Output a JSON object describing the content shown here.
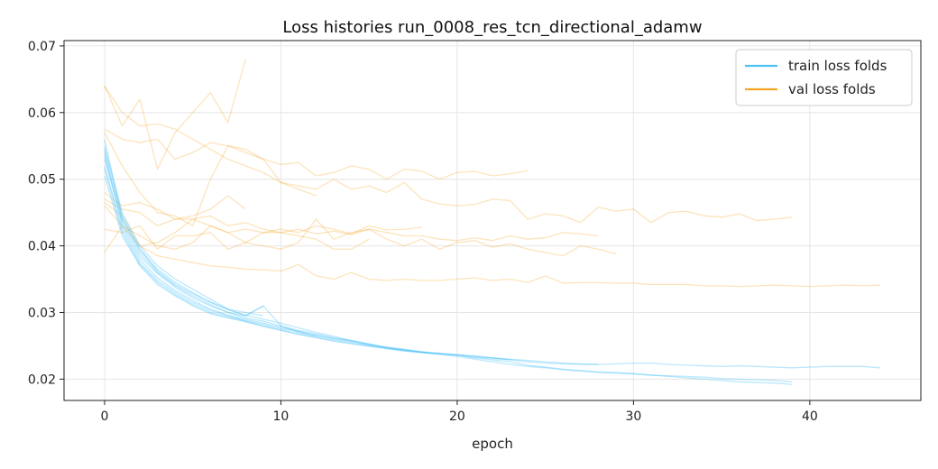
{
  "chart_data": {
    "type": "line",
    "title": "Loss histories run_0008_res_tcn_directional_adamw",
    "xlabel": "epoch",
    "ylabel": "",
    "xlim": [
      -2.3,
      46.3
    ],
    "ylim": [
      0.0168,
      0.0708
    ],
    "x_ticks": [
      0,
      10,
      20,
      30,
      40
    ],
    "y_ticks": [
      0.02,
      0.03,
      0.04,
      0.05,
      0.06,
      0.07
    ],
    "y_tick_labels": [
      "0.02",
      "0.03",
      "0.04",
      "0.05",
      "0.06",
      "0.07"
    ],
    "grid": true,
    "legend": {
      "placement": "top-right",
      "entries": [
        "train loss folds",
        "val loss folds"
      ]
    },
    "colors": {
      "train": "#4fc3f7",
      "val": "#f5a623"
    },
    "series": [
      {
        "group": "train",
        "x_start": 0,
        "values": [
          0.0545,
          0.0445,
          0.0395,
          0.0365,
          0.0345,
          0.033,
          0.0315,
          0.0305,
          0.03,
          0.0295
        ]
      },
      {
        "group": "train",
        "x_start": 0,
        "values": [
          0.0535,
          0.044,
          0.039,
          0.036,
          0.034,
          0.0325,
          0.0312,
          0.03,
          0.0295,
          0.031,
          0.028,
          0.027,
          0.0265
        ]
      },
      {
        "group": "train",
        "x_start": 0,
        "values": [
          0.055,
          0.045,
          0.04,
          0.037,
          0.035,
          0.0335,
          0.032,
          0.0305,
          0.0295,
          0.031
        ]
      },
      {
        "group": "train",
        "x_start": 0,
        "values": [
          0.053,
          0.0435,
          0.0385,
          0.0358,
          0.0338,
          0.0322,
          0.031,
          0.03,
          0.0292,
          0.0287,
          0.028,
          0.0273,
          0.0268,
          0.0262,
          0.0258,
          0.0253,
          0.0248,
          0.0244,
          0.0241,
          0.0238,
          0.0236,
          0.0233,
          0.0231,
          0.0229,
          0.0226,
          0.0224,
          0.0223,
          0.0222,
          0.0222,
          0.0223,
          0.0224,
          0.0224,
          0.0222,
          0.0221,
          0.022,
          0.0219,
          0.022,
          0.0219,
          0.0218,
          0.0217,
          0.0218,
          0.0219,
          0.0219,
          0.0219,
          0.0217
        ]
      },
      {
        "group": "train",
        "x_start": 0,
        "values": [
          0.054,
          0.043,
          0.038,
          0.0352,
          0.0333,
          0.0318,
          0.0305,
          0.0296,
          0.029,
          0.0284,
          0.0278,
          0.0272,
          0.0266,
          0.0261,
          0.0257,
          0.0252,
          0.0248,
          0.0245,
          0.0241,
          0.0238,
          0.0236,
          0.0232,
          0.0229,
          0.0226,
          0.0221,
          0.0218,
          0.0215,
          0.0213,
          0.0211,
          0.021,
          0.0208,
          0.0206,
          0.0204,
          0.0202,
          0.02,
          0.0198,
          0.0196,
          0.0195,
          0.0194,
          0.0192
        ]
      },
      {
        "group": "train",
        "x_start": 0,
        "values": [
          0.052,
          0.0425,
          0.0375,
          0.0348,
          0.033,
          0.0315,
          0.0303,
          0.0295,
          0.0288,
          0.0282,
          0.0276,
          0.0271,
          0.0265,
          0.026,
          0.0256,
          0.0251,
          0.0247,
          0.0244,
          0.024,
          0.0237,
          0.0234,
          0.023,
          0.0226,
          0.0222,
          0.0219,
          0.0217,
          0.0214,
          0.0212,
          0.021,
          0.0209,
          0.0208,
          0.0206,
          0.0205,
          0.0204,
          0.0203,
          0.0201,
          0.02,
          0.0199,
          0.0198,
          0.0196
        ]
      },
      {
        "group": "train",
        "x_start": 0,
        "values": [
          0.056,
          0.044,
          0.0395,
          0.0362,
          0.0342,
          0.0328,
          0.0316,
          0.0304,
          0.0296,
          0.029,
          0.0284,
          0.0277,
          0.027,
          0.0264,
          0.0258,
          0.0252,
          0.0246,
          0.0243,
          0.024,
          0.0239,
          0.0237,
          0.0235,
          0.0232,
          0.023,
          0.0228,
          0.0226,
          0.0224,
          0.0223,
          0.0222
        ]
      },
      {
        "group": "train",
        "x_start": 0,
        "values": [
          0.0515,
          0.042,
          0.0372,
          0.0345,
          0.0327,
          0.0312,
          0.03,
          0.0293,
          0.0287,
          0.028,
          0.0274,
          0.0268,
          0.0263,
          0.0258,
          0.0254,
          0.025,
          0.0246,
          0.0242,
          0.024,
          0.0238
        ]
      },
      {
        "group": "train",
        "x_start": 0,
        "values": [
          0.0505,
          0.0415,
          0.037,
          0.0342,
          0.0325,
          0.031,
          0.0298,
          0.0292,
          0.0286,
          0.0279,
          0.0273,
          0.0267,
          0.0262,
          0.0257,
          0.0253,
          0.0249,
          0.0246,
          0.0243,
          0.024,
          0.0238,
          0.0236,
          0.0234,
          0.0232,
          0.0229
        ]
      },
      {
        "group": "val",
        "x_start": 0,
        "values": [
          0.064,
          0.058,
          0.062,
          0.0515,
          0.057,
          0.06,
          0.063,
          0.0585,
          0.068
        ]
      },
      {
        "group": "val",
        "x_start": 0,
        "values": [
          0.064,
          0.06,
          0.058,
          0.0583,
          0.0575,
          0.056,
          0.0545,
          0.053,
          0.052,
          0.051,
          0.0495,
          0.0485,
          0.0475
        ]
      },
      {
        "group": "val",
        "x_start": 0,
        "values": [
          0.0575,
          0.056,
          0.0555,
          0.056,
          0.053,
          0.054,
          0.0555,
          0.055,
          0.054,
          0.053,
          0.0522,
          0.0525,
          0.0505,
          0.051,
          0.052,
          0.0515,
          0.05,
          0.0515,
          0.0512,
          0.05,
          0.051,
          0.0512,
          0.0505,
          0.0508,
          0.0513
        ]
      },
      {
        "group": "val",
        "x_start": 0,
        "values": [
          0.057,
          0.052,
          0.048,
          0.045,
          0.0445,
          0.043,
          0.05,
          0.055,
          0.0545,
          0.053,
          0.0495,
          0.049,
          0.0485,
          0.05,
          0.0485,
          0.049,
          0.048,
          0.0495,
          0.047,
          0.0463,
          0.046,
          0.0462,
          0.047,
          0.0468,
          0.044,
          0.0448,
          0.0445,
          0.0435,
          0.0458,
          0.0452,
          0.0455,
          0.0435,
          0.045,
          0.0452,
          0.0445,
          0.0443,
          0.0448,
          0.0438,
          0.044,
          0.0443
        ]
      },
      {
        "group": "val",
        "x_start": 0,
        "values": [
          0.048,
          0.046,
          0.0465,
          0.0455,
          0.044,
          0.0445,
          0.0455,
          0.0475,
          0.0455
        ]
      },
      {
        "group": "val",
        "x_start": 0,
        "values": [
          0.047,
          0.0455,
          0.045,
          0.043,
          0.044,
          0.044,
          0.043,
          0.042,
          0.0425,
          0.042,
          0.0425,
          0.042,
          0.043,
          0.0425,
          0.0418,
          0.043,
          0.0424,
          0.0425,
          0.0428
        ]
      },
      {
        "group": "val",
        "x_start": 0,
        "values": [
          0.0465,
          0.0445,
          0.04,
          0.0405,
          0.042,
          0.044,
          0.0445,
          0.043,
          0.0435,
          0.0425,
          0.042,
          0.0425,
          0.0418,
          0.0422,
          0.0417,
          0.0425,
          0.042,
          0.0415,
          0.0415,
          0.041,
          0.0408,
          0.0412,
          0.0408,
          0.0415,
          0.041,
          0.0412,
          0.042,
          0.0418,
          0.0415
        ]
      },
      {
        "group": "val",
        "x_start": 0,
        "values": [
          0.0425,
          0.042,
          0.043,
          0.0395,
          0.0415,
          0.0415,
          0.042,
          0.0395,
          0.0405,
          0.042,
          0.042,
          0.0415,
          0.041,
          0.0395,
          0.0395,
          0.041
        ]
      },
      {
        "group": "val",
        "x_start": 0,
        "values": [
          0.039,
          0.043,
          0.0415,
          0.04,
          0.0395,
          0.0405,
          0.043,
          0.042,
          0.0405,
          0.04,
          0.0395,
          0.0405,
          0.044,
          0.041,
          0.042,
          0.0425,
          0.041,
          0.04,
          0.041,
          0.0395,
          0.0405,
          0.0408,
          0.0398,
          0.0403,
          0.0395,
          0.039,
          0.0385,
          0.04,
          0.0395,
          0.0388
        ]
      },
      {
        "group": "val",
        "x_start": 0,
        "values": [
          0.046,
          0.043,
          0.04,
          0.0385,
          0.038,
          0.0375,
          0.037,
          0.0368,
          0.0365,
          0.0364,
          0.0362,
          0.0372,
          0.0355,
          0.035,
          0.036,
          0.035,
          0.0348,
          0.035,
          0.0348,
          0.0348,
          0.035,
          0.0352,
          0.0348,
          0.035,
          0.0345,
          0.0355,
          0.0344,
          0.0345,
          0.0345,
          0.0344,
          0.0344,
          0.0342,
          0.0342,
          0.0342,
          0.034,
          0.034,
          0.0339,
          0.034,
          0.0341,
          0.034,
          0.0339,
          0.034,
          0.0341,
          0.034,
          0.0341
        ]
      }
    ]
  }
}
